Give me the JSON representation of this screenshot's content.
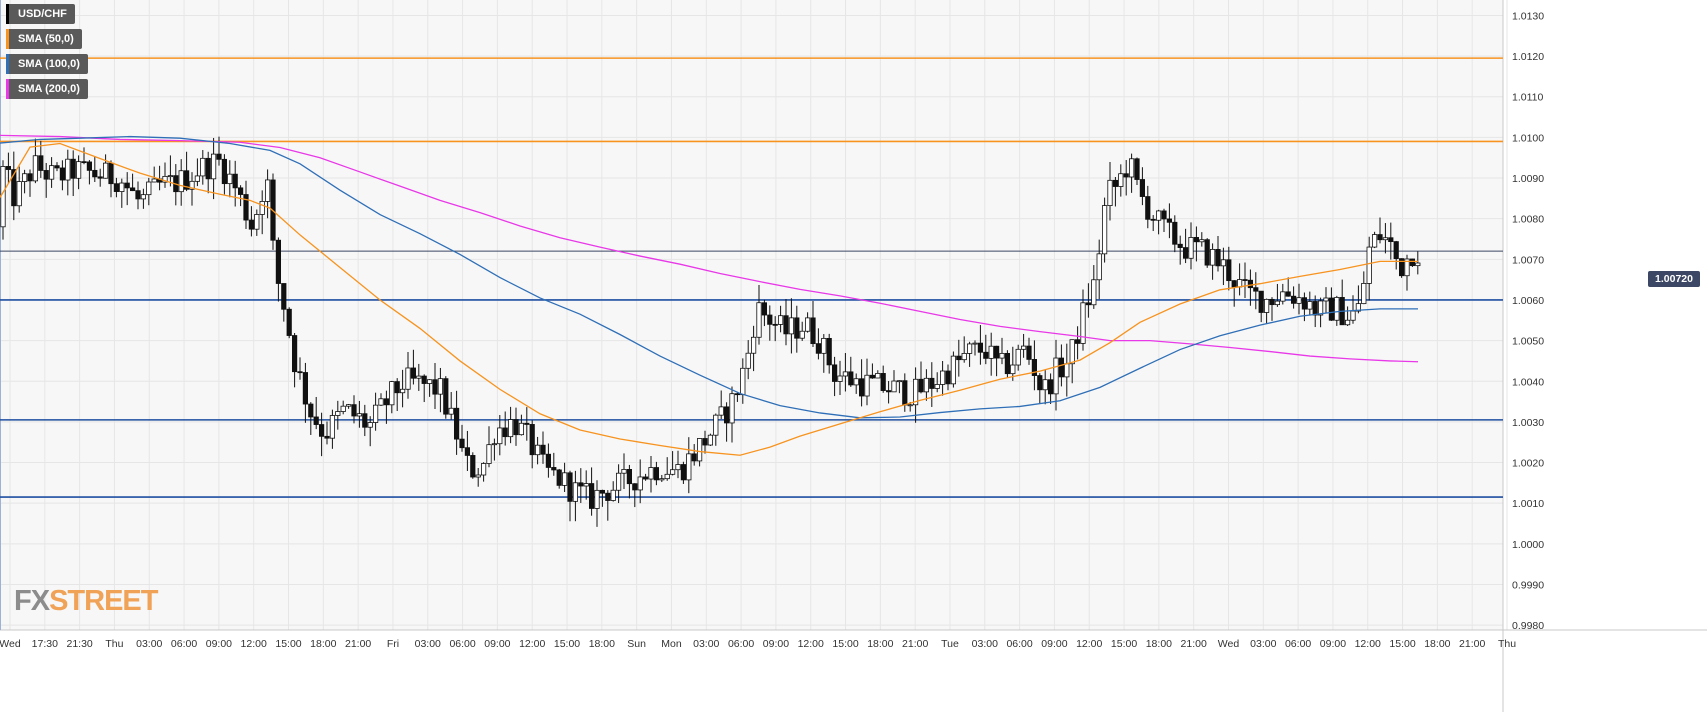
{
  "chart_data": {
    "type": "candlestick",
    "symbol": "USD/CHF",
    "legend": [
      {
        "label": "USD/CHF",
        "color": "#000000"
      },
      {
        "label": "SMA (50,0)",
        "color": "#f7931e"
      },
      {
        "label": "SMA (100,0)",
        "color": "#2f6fb7"
      },
      {
        "label": "SMA (200,0)",
        "color": "#e838e8"
      }
    ],
    "y_ticks": [
      "1.0130",
      "1.0120",
      "1.0110",
      "1.0100",
      "1.0090",
      "1.0080",
      "1.0070",
      "1.0060",
      "1.0050",
      "1.0040",
      "1.0030",
      "1.0020",
      "1.0010",
      "1.0000",
      "0.9990",
      "0.9980"
    ],
    "y_tick_values": [
      1.013,
      1.012,
      1.011,
      1.01,
      1.009,
      1.008,
      1.007,
      1.006,
      1.005,
      1.004,
      1.003,
      1.002,
      1.001,
      1.0,
      0.999,
      0.998
    ],
    "ylim": [
      0.99788,
      1.01338
    ],
    "x_ticks": [
      "Wed",
      "17:30",
      "21:30",
      "Thu",
      "03:00",
      "06:00",
      "09:00",
      "12:00",
      "15:00",
      "18:00",
      "21:00",
      "Fri",
      "03:00",
      "06:00",
      "09:00",
      "12:00",
      "15:00",
      "18:00",
      "Sun",
      "Mon",
      "03:00",
      "06:00",
      "09:00",
      "12:00",
      "15:00",
      "18:00",
      "21:00",
      "Tue",
      "03:00",
      "06:00",
      "09:00",
      "12:00",
      "15:00",
      "18:00",
      "21:00",
      "Wed",
      "03:00",
      "06:00",
      "09:00",
      "12:00",
      "15:00",
      "18:00",
      "21:00",
      "Thu"
    ],
    "current_price": 1.0072,
    "current_price_label": "1.00720",
    "horizontal_levels": [
      {
        "value": 1.01195,
        "color": "#f7931e"
      },
      {
        "value": 1.0099,
        "color": "#f7931e"
      },
      {
        "value": 1.006,
        "color": "#1f4fa0"
      },
      {
        "value": 1.00305,
        "color": "#1f4fa0"
      },
      {
        "value": 1.00115,
        "color": "#1f4fa0"
      }
    ],
    "price_path_anchors": [
      [
        0,
        1.0078
      ],
      [
        8,
        1.0092
      ],
      [
        20,
        1.0085
      ],
      [
        40,
        1.0093
      ],
      [
        60,
        1.009
      ],
      [
        80,
        1.0092
      ],
      [
        100,
        1.0091
      ],
      [
        125,
        1.009
      ],
      [
        145,
        1.0084
      ],
      [
        165,
        1.0088
      ],
      [
        185,
        1.0089
      ],
      [
        210,
        1.0093
      ],
      [
        225,
        1.0094
      ],
      [
        240,
        1.0088
      ],
      [
        258,
        1.0078
      ],
      [
        272,
        1.0091
      ],
      [
        280,
        1.0068
      ],
      [
        290,
        1.0058
      ],
      [
        300,
        1.0045
      ],
      [
        315,
        1.0033
      ],
      [
        330,
        1.0027
      ],
      [
        350,
        1.0033
      ],
      [
        375,
        1.0029
      ],
      [
        395,
        1.0036
      ],
      [
        410,
        1.004
      ],
      [
        430,
        1.0039
      ],
      [
        445,
        1.0038
      ],
      [
        462,
        1.0027
      ],
      [
        470,
        1.002
      ],
      [
        480,
        1.0018
      ],
      [
        490,
        1.002
      ],
      [
        500,
        1.0028
      ],
      [
        520,
        1.003
      ],
      [
        535,
        1.0025
      ],
      [
        550,
        1.0018
      ],
      [
        565,
        1.0016
      ],
      [
        580,
        1.0013
      ],
      [
        595,
        1.0011
      ],
      [
        610,
        1.0013
      ],
      [
        630,
        1.0015
      ],
      [
        645,
        1.0017
      ],
      [
        665,
        1.0019
      ],
      [
        685,
        1.0018
      ],
      [
        705,
        1.0024
      ],
      [
        725,
        1.003
      ],
      [
        740,
        1.0036
      ],
      [
        752,
        1.0045
      ],
      [
        762,
        1.0058
      ],
      [
        772,
        1.0056
      ],
      [
        790,
        1.0052
      ],
      [
        810,
        1.0054
      ],
      [
        825,
        1.005
      ],
      [
        840,
        1.0042
      ],
      [
        860,
        1.004
      ],
      [
        880,
        1.0039
      ],
      [
        900,
        1.0038
      ],
      [
        920,
        1.0037
      ],
      [
        940,
        1.004
      ],
      [
        960,
        1.0044
      ],
      [
        975,
        1.0047
      ],
      [
        990,
        1.0048
      ],
      [
        1005,
        1.0043
      ],
      [
        1018,
        1.0045
      ],
      [
        1030,
        1.0048
      ],
      [
        1040,
        1.0043
      ],
      [
        1048,
        1.0037
      ],
      [
        1060,
        1.0042
      ],
      [
        1075,
        1.0045
      ],
      [
        1090,
        1.0058
      ],
      [
        1100,
        1.0064
      ],
      [
        1112,
        1.0086
      ],
      [
        1122,
        1.0088
      ],
      [
        1134,
        1.0094
      ],
      [
        1145,
        1.0086
      ],
      [
        1160,
        1.008
      ],
      [
        1175,
        1.0076
      ],
      [
        1190,
        1.0073
      ],
      [
        1210,
        1.0072
      ],
      [
        1230,
        1.0068
      ],
      [
        1250,
        1.0062
      ],
      [
        1270,
        1.006
      ],
      [
        1290,
        1.0062
      ],
      [
        1310,
        1.006
      ],
      [
        1325,
        1.0057
      ],
      [
        1340,
        1.0058
      ],
      [
        1355,
        1.0056
      ],
      [
        1365,
        1.0058
      ],
      [
        1375,
        1.0073
      ],
      [
        1385,
        1.0076
      ],
      [
        1395,
        1.0074
      ],
      [
        1405,
        1.0068
      ],
      [
        1418,
        1.0072
      ]
    ],
    "sma50": [
      [
        0,
        1.00852
      ],
      [
        30,
        1.00976
      ],
      [
        60,
        1.00985
      ],
      [
        100,
        1.00948
      ],
      [
        140,
        1.00912
      ],
      [
        180,
        1.00882
      ],
      [
        220,
        1.0086
      ],
      [
        250,
        1.00845
      ],
      [
        270,
        1.00826
      ],
      [
        300,
        1.0076
      ],
      [
        340,
        1.0068
      ],
      [
        380,
        1.006
      ],
      [
        420,
        1.0053
      ],
      [
        460,
        1.0045
      ],
      [
        500,
        1.0038
      ],
      [
        540,
        1.0032
      ],
      [
        580,
        1.0028
      ],
      [
        620,
        1.00258
      ],
      [
        660,
        1.00242
      ],
      [
        700,
        1.00227
      ],
      [
        740,
        1.00218
      ],
      [
        770,
        1.00238
      ],
      [
        800,
        1.00265
      ],
      [
        840,
        1.00295
      ],
      [
        880,
        1.00325
      ],
      [
        920,
        1.00353
      ],
      [
        960,
        1.00378
      ],
      [
        1000,
        1.00405
      ],
      [
        1040,
        1.00425
      ],
      [
        1080,
        1.00452
      ],
      [
        1110,
        1.00495
      ],
      [
        1140,
        1.00545
      ],
      [
        1180,
        1.0059
      ],
      [
        1220,
        1.00625
      ],
      [
        1260,
        1.0064
      ],
      [
        1300,
        1.00658
      ],
      [
        1340,
        1.00675
      ],
      [
        1380,
        1.00695
      ],
      [
        1418,
        1.00695
      ]
    ],
    "sma100": [
      [
        0,
        1.00986
      ],
      [
        40,
        1.00995
      ],
      [
        80,
        1.00998
      ],
      [
        130,
        1.01002
      ],
      [
        180,
        1.00998
      ],
      [
        230,
        1.00985
      ],
      [
        270,
        1.00968
      ],
      [
        300,
        1.00935
      ],
      [
        340,
        1.0087
      ],
      [
        380,
        1.0081
      ],
      [
        420,
        1.00763
      ],
      [
        460,
        1.00712
      ],
      [
        500,
        1.00655
      ],
      [
        540,
        1.00605
      ],
      [
        580,
        1.00565
      ],
      [
        620,
        1.00515
      ],
      [
        660,
        1.00462
      ],
      [
        700,
        1.00415
      ],
      [
        740,
        1.0037
      ],
      [
        780,
        1.0034
      ],
      [
        820,
        1.00322
      ],
      [
        860,
        1.0031
      ],
      [
        900,
        1.00312
      ],
      [
        940,
        1.00323
      ],
      [
        980,
        1.00332
      ],
      [
        1020,
        1.00338
      ],
      [
        1060,
        1.00352
      ],
      [
        1100,
        1.00385
      ],
      [
        1140,
        1.00432
      ],
      [
        1180,
        1.00478
      ],
      [
        1220,
        1.00512
      ],
      [
        1260,
        1.00538
      ],
      [
        1300,
        1.0056
      ],
      [
        1340,
        1.00572
      ],
      [
        1380,
        1.00578
      ],
      [
        1418,
        1.00578
      ]
    ],
    "sma200": [
      [
        0,
        1.01005
      ],
      [
        60,
        1.01002
      ],
      [
        120,
        1.00995
      ],
      [
        180,
        1.00992
      ],
      [
        240,
        1.00988
      ],
      [
        280,
        1.00975
      ],
      [
        320,
        1.0095
      ],
      [
        360,
        1.00915
      ],
      [
        400,
        1.0088
      ],
      [
        440,
        1.00845
      ],
      [
        480,
        1.00815
      ],
      [
        520,
        1.00782
      ],
      [
        560,
        1.00753
      ],
      [
        600,
        1.0073
      ],
      [
        640,
        1.00708
      ],
      [
        680,
        1.00688
      ],
      [
        720,
        1.00665
      ],
      [
        760,
        1.00645
      ],
      [
        800,
        1.00626
      ],
      [
        840,
        1.0061
      ],
      [
        880,
        1.00592
      ],
      [
        920,
        1.00572
      ],
      [
        960,
        1.00552
      ],
      [
        1000,
        1.00535
      ],
      [
        1040,
        1.00522
      ],
      [
        1080,
        1.0051
      ],
      [
        1110,
        1.005
      ],
      [
        1150,
        1.005
      ],
      [
        1190,
        1.00492
      ],
      [
        1230,
        1.00483
      ],
      [
        1270,
        1.00473
      ],
      [
        1310,
        1.00462
      ],
      [
        1350,
        1.00455
      ],
      [
        1390,
        1.0045
      ],
      [
        1418,
        1.00448
      ]
    ]
  },
  "brand": {
    "left": "FX",
    "right": "STREET"
  }
}
